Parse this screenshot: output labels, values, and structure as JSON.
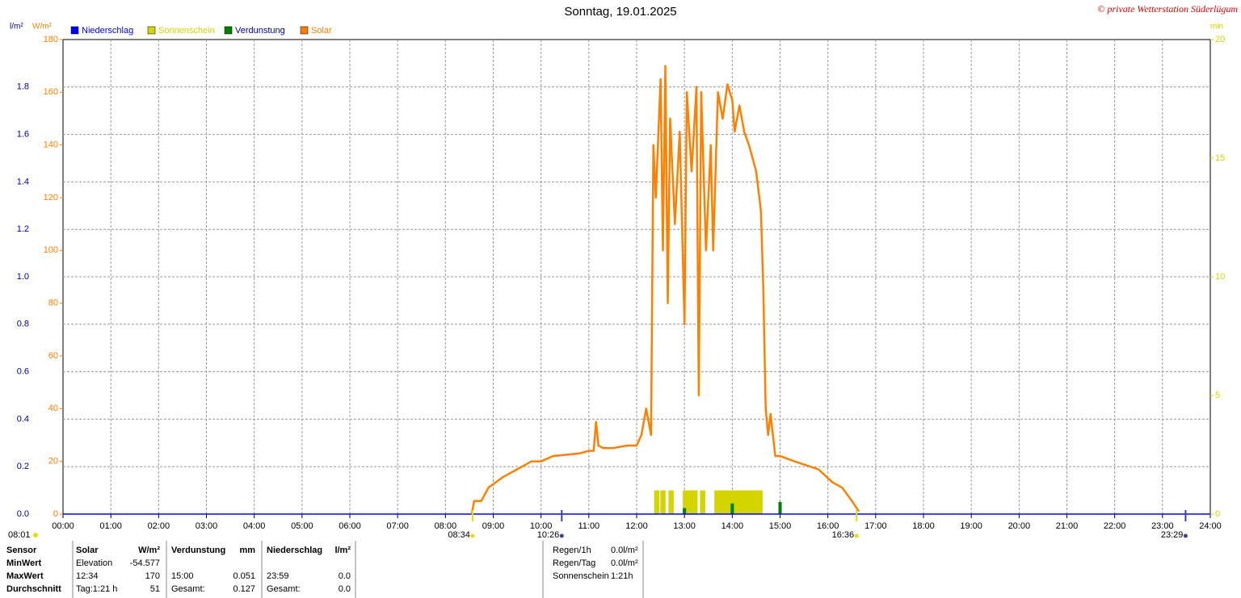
{
  "chart_data": {
    "type": "line",
    "title": "Sonntag, 19.01.2025",
    "credit": "© private Wetterstation Süderlügum",
    "unit_left_outer": "l/m²",
    "unit_left": "W/m²",
    "unit_right": "min",
    "xlim": [
      0,
      24
    ],
    "xticks": [
      {
        "value": 0,
        "label": "00:00"
      },
      {
        "value": 1,
        "label": "01:00"
      },
      {
        "value": 2,
        "label": "02:00"
      },
      {
        "value": 3,
        "label": "03:00"
      },
      {
        "value": 4,
        "label": "04:00"
      },
      {
        "value": 5,
        "label": "05:00"
      },
      {
        "value": 6,
        "label": "06:00"
      },
      {
        "value": 7,
        "label": "07:00"
      },
      {
        "value": 8,
        "label": "08:00"
      },
      {
        "value": 9,
        "label": "09:00"
      },
      {
        "value": 10,
        "label": "10:00"
      },
      {
        "value": 11,
        "label": "11:00"
      },
      {
        "value": 12,
        "label": "12:00"
      },
      {
        "value": 13,
        "label": "13:00"
      },
      {
        "value": 14,
        "label": "14:00"
      },
      {
        "value": 15,
        "label": "15:00"
      },
      {
        "value": 16,
        "label": "16:00"
      },
      {
        "value": 17,
        "label": "17:00"
      },
      {
        "value": 18,
        "label": "18:00"
      },
      {
        "value": 19,
        "label": "19:00"
      },
      {
        "value": 20,
        "label": "20:00"
      },
      {
        "value": 21,
        "label": "21:00"
      },
      {
        "value": 22,
        "label": "22:00"
      },
      {
        "value": 23,
        "label": "23:00"
      },
      {
        "value": 24,
        "label": "24:00"
      }
    ],
    "ylim": [
      0,
      180
    ],
    "yticks": [
      0,
      20,
      40,
      60,
      80,
      100,
      120,
      140,
      160,
      180
    ],
    "y2lim": [
      0,
      20
    ],
    "y2ticks": [
      0,
      5,
      10,
      15,
      20
    ],
    "y3lim": [
      0,
      2.0
    ],
    "y3ticks": [
      {
        "value": 0,
        "label": "0.0"
      },
      {
        "value": 0.2,
        "label": "0.2"
      },
      {
        "value": 0.4,
        "label": "0.4"
      },
      {
        "value": 0.6,
        "label": "0.6"
      },
      {
        "value": 0.8,
        "label": "0.8"
      },
      {
        "value": 1.0,
        "label": "1.0"
      },
      {
        "value": 1.2,
        "label": "1.2"
      },
      {
        "value": 1.4,
        "label": "1.4"
      },
      {
        "value": 1.6,
        "label": "1.6"
      },
      {
        "value": 1.8,
        "label": "1.8"
      }
    ],
    "grid": true,
    "series": [
      {
        "name": "Niederschlag",
        "color": "#0000ff",
        "axis": "y3",
        "kind": "line",
        "x": [
          0,
          24
        ],
        "values": [
          0,
          0
        ]
      },
      {
        "name": "Sonnenschein",
        "color": "#d4d400",
        "axis": "y2",
        "kind": "bar",
        "x": [
          12.42,
          12.55,
          12.72,
          13.02,
          13.12,
          13.22,
          13.38,
          13.68,
          13.78,
          13.88,
          13.98,
          14.08,
          14.18,
          14.28,
          14.38,
          14.48,
          14.58
        ],
        "values": [
          1,
          1,
          1,
          1,
          1,
          1,
          1,
          1,
          1,
          1,
          1,
          1,
          1,
          1,
          1,
          1,
          1
        ]
      },
      {
        "name": "Verdunstung",
        "color": "#008000",
        "axis": "y3",
        "kind": "bar",
        "x": [
          13.0,
          14.0,
          15.0
        ],
        "values": [
          0.025,
          0.045,
          0.051
        ]
      },
      {
        "name": "Solar",
        "color": "#ff8000",
        "axis": "y",
        "kind": "line",
        "x": [
          8.55,
          8.6,
          8.75,
          8.9,
          9.2,
          9.5,
          9.8,
          10.0,
          10.25,
          10.8,
          11.0,
          11.1,
          11.15,
          11.2,
          11.3,
          11.5,
          11.8,
          12.0,
          12.1,
          12.2,
          12.3,
          12.35,
          12.4,
          12.5,
          12.55,
          12.6,
          12.65,
          12.7,
          12.8,
          12.9,
          13.0,
          13.05,
          13.15,
          13.25,
          13.3,
          13.35,
          13.45,
          13.55,
          13.6,
          13.7,
          13.8,
          13.9,
          14.0,
          14.05,
          14.15,
          14.25,
          14.35,
          14.5,
          14.6,
          14.65,
          14.7,
          14.75,
          14.8,
          14.9,
          15.0,
          15.3,
          15.8,
          16.1,
          16.3,
          16.5,
          16.65
        ],
        "values": [
          0,
          5,
          5,
          10,
          14,
          17,
          20,
          20,
          22,
          23,
          24,
          24,
          35,
          26,
          25,
          25,
          26,
          26,
          30,
          40,
          30,
          140,
          120,
          165,
          100,
          170,
          80,
          150,
          110,
          145,
          72,
          160,
          130,
          162,
          45,
          160,
          100,
          140,
          100,
          160,
          150,
          163,
          157,
          145,
          155,
          145,
          140,
          130,
          115,
          85,
          40,
          30,
          38,
          22,
          22,
          20,
          17,
          12,
          10,
          5,
          1
        ]
      }
    ],
    "left_note": "08:01",
    "annotations": [
      {
        "label": "08:34",
        "x": 8.567,
        "color": "#e0e000"
      },
      {
        "label": "10:26",
        "x": 10.433,
        "color": "#4040a0"
      },
      {
        "label": "16:36",
        "x": 16.6,
        "color": "#e0e000"
      },
      {
        "label": "23:29",
        "x": 23.483,
        "color": "#4040a0"
      }
    ]
  },
  "stats": {
    "rows": [
      [
        "Sensor",
        "Solar",
        "W/m²",
        "Verdunstung",
        "mm",
        "Niederschlag",
        "l/m²"
      ],
      [
        "MinWert",
        "Elevation",
        "-54.577",
        null,
        null,
        null,
        null
      ],
      [
        "MaxWert",
        "12:34",
        "170",
        "15:00",
        "0.051",
        "23:59",
        "0.0"
      ],
      [
        "Durchschnitt",
        "Tag:1:21 h",
        "51",
        "Gesamt:",
        "0.127",
        "Gesamt:",
        "0.0"
      ]
    ],
    "summary": [
      [
        "Regen/1h",
        "0.0l/m²"
      ],
      [
        "Regen/Tag",
        "0.0l/m²"
      ],
      [
        "Sonnenschein",
        "1:21h"
      ]
    ]
  }
}
